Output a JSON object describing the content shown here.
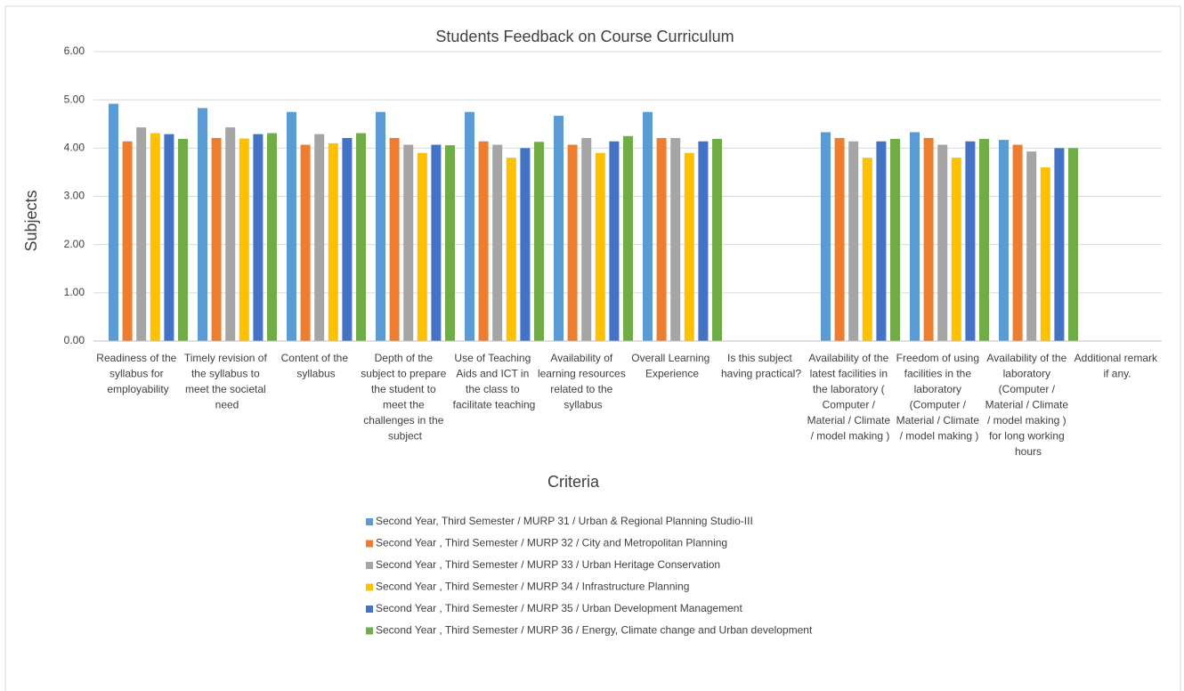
{
  "chart_data": {
    "type": "bar",
    "title": "Students Feedback on Course Curriculum",
    "x_label": "Criteria",
    "y_label": "Subjects",
    "categories": [
      "Readiness of the syllabus for employability",
      "Timely revision of the syllabus to meet the societal need",
      "Content of the syllabus",
      "Depth of the subject to prepare the student to meet the challenges in the subject",
      "Use of Teaching Aids and ICT in the class to facilitate teaching",
      "Availability of learning resources related to the syllabus",
      "Overall Learning Experience",
      "Is this subject having practical?",
      "Availability of the latest facilities in the laboratory ( Computer / Material / Climate / model making )",
      "Freedom of using facilities in the laboratory (Computer / Material / Climate / model making )",
      "Availability of the laboratory (Computer / Material / Climate / model making ) for long working hours",
      "Additional remark if any."
    ],
    "series": [
      {
        "name": "Second Year, Third Semester / MURP 31 / Urban & Regional Planning Studio-III",
        "color": "#5b9bd5",
        "values": [
          4.92,
          4.83,
          4.75,
          4.75,
          4.75,
          4.67,
          4.75,
          null,
          4.33,
          4.33,
          4.17,
          null
        ]
      },
      {
        "name": "Second Year , Third Semester / MURP 32 / City and Metropolitan Planning",
        "color": "#ed7d31",
        "values": [
          4.14,
          4.21,
          4.07,
          4.21,
          4.14,
          4.07,
          4.21,
          null,
          4.21,
          4.21,
          4.07,
          null
        ]
      },
      {
        "name": "Second Year , Third Semester / MURP 33 / Urban Heritage Conservation",
        "color": "#a5a5a5",
        "values": [
          4.43,
          4.43,
          4.29,
          4.07,
          4.07,
          4.21,
          4.21,
          null,
          4.14,
          4.07,
          3.93,
          null
        ]
      },
      {
        "name": "Second Year , Third Semester / MURP 34 / Infrastructure Planning",
        "color": "#ffc000",
        "values": [
          4.31,
          4.2,
          4.1,
          3.9,
          3.8,
          3.9,
          3.9,
          null,
          3.8,
          3.8,
          3.6,
          null
        ]
      },
      {
        "name": "Second Year , Third Semester / MURP 35 / Urban Development Management",
        "color": "#4472c4",
        "values": [
          4.29,
          4.29,
          4.21,
          4.07,
          4.0,
          4.14,
          4.14,
          null,
          4.14,
          4.14,
          4.0,
          null
        ]
      },
      {
        "name": "Second Year , Third Semester / MURP 36 / Energy, Climate change and Urban development",
        "color": "#70ad47",
        "values": [
          4.19,
          4.31,
          4.31,
          4.06,
          4.13,
          4.25,
          4.19,
          null,
          4.19,
          4.19,
          4.0,
          null
        ]
      }
    ],
    "ylim": [
      0,
      6
    ],
    "yticks": [
      {
        "value": 0,
        "label": "0.00"
      },
      {
        "value": 1,
        "label": "1.00"
      },
      {
        "value": 2,
        "label": "2.00"
      },
      {
        "value": 3,
        "label": "3.00"
      },
      {
        "value": 4,
        "label": "4.00"
      },
      {
        "value": 5,
        "label": "5.00"
      },
      {
        "value": 6,
        "label": "6.00"
      }
    ],
    "grid": true,
    "legend": "bottom"
  }
}
